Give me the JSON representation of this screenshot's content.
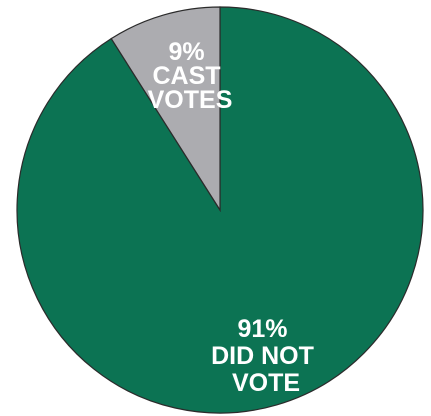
{
  "chart_data": {
    "type": "pie",
    "slices": [
      {
        "value": 91,
        "color": "#0c7353",
        "label_lines": [
          "91%",
          "DID NOT",
          "VOTE"
        ]
      },
      {
        "value": 9,
        "color": "#acacb0",
        "label_lines": [
          "9%",
          "CAST",
          "VOTES"
        ]
      }
    ]
  }
}
